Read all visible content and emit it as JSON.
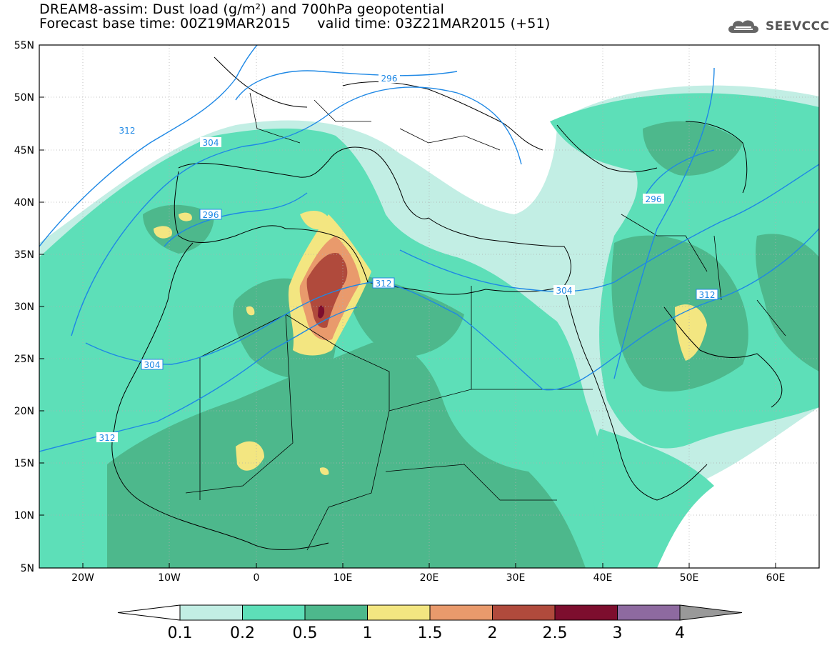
{
  "title": {
    "line1": "DREAM8-assim: Dust load (g/m²) and 700hPa geopotential",
    "base_label": "Forecast base time: 00Z19MAR2015",
    "valid_label": "valid time: 03Z21MAR2015 (+51)"
  },
  "logo": {
    "text": "SEEVCCC",
    "icon": "cloud-icon"
  },
  "axes": {
    "lon_ticks": [
      "20W",
      "10W",
      "0",
      "10E",
      "20E",
      "30E",
      "40E",
      "50E",
      "60E"
    ],
    "lat_ticks": [
      "55N",
      "50N",
      "45N",
      "40N",
      "35N",
      "30N",
      "25N",
      "20N",
      "15N",
      "10N",
      "5N"
    ],
    "lon_range": [
      -25,
      65
    ],
    "lat_range": [
      5,
      55
    ]
  },
  "colorbar": {
    "labels": [
      "0.1",
      "0.2",
      "0.5",
      "1",
      "1.5",
      "2",
      "2.5",
      "3",
      "4"
    ],
    "colors": [
      "#c2eee4",
      "#5ddfb8",
      "#4db88c",
      "#f3e681",
      "#e99a6c",
      "#b04a3c",
      "#7d0e2e",
      "#8e6aa0",
      "#999999"
    ]
  },
  "contours": {
    "labels": [
      "296",
      "304",
      "312",
      "296",
      "304",
      "312",
      "296",
      "304",
      "312"
    ],
    "color": "#1e88e5"
  },
  "colors": {
    "land_border": "#000000",
    "grid": "#b0b0b0",
    "background": "#ffffff"
  }
}
